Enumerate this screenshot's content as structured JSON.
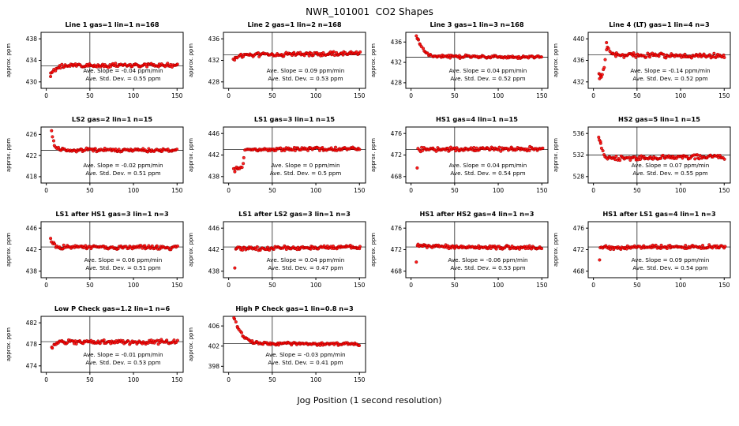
{
  "page": {
    "title": "NWR_101001  CO2 Shapes",
    "xlabel": "Jog Position (1 second resolution)",
    "ylabel": "approx. ppm"
  },
  "colors": {
    "point_fill": "#ff0000",
    "point_stroke": "#990000",
    "axis": "#000000",
    "background": "#ffffff"
  },
  "chart_data": {
    "type": "scatter",
    "title": "NWR_101001  CO2 Shapes",
    "xlabel": "Jog Position (1 second resolution)",
    "ylabel": "approx. ppm",
    "x_ticks": [
      0,
      50,
      100,
      150
    ],
    "x_range": [
      -6,
      157
    ],
    "vline_x": 50,
    "grid": "off",
    "panels": [
      {
        "title": "Line 1 gas=1 lin=1 n=168",
        "y_ticks": [
          430,
          434,
          438
        ],
        "y_range": [
          428.8,
          439.2
        ],
        "hline": 433,
        "slope": -0.04,
        "std_dev": 0.55,
        "slope_text": "Ave. Slope = -0.04 ppm/min",
        "std_text": "Ave. Std. Dev. = 0.55 ppm",
        "baseline_profile": [
          [
            5,
            431.7
          ],
          [
            11,
            432.3
          ],
          [
            18,
            432.9
          ],
          [
            28,
            433.0
          ],
          [
            150,
            433.1
          ]
        ],
        "outliers": [
          [
            5,
            431.0
          ]
        ],
        "noise": 0.28
      },
      {
        "title": "Line 2 gas=1 lin=2 n=168",
        "y_ticks": [
          428,
          432,
          436
        ],
        "y_range": [
          426.8,
          437.2
        ],
        "hline": 433,
        "slope": 0.09,
        "std_dev": 0.53,
        "slope_text": "Ave. Slope = 0.09 ppm/min",
        "std_text": "Ave. Std. Dev. = 0.53 ppm",
        "baseline_profile": [
          [
            5,
            432.1
          ],
          [
            12,
            432.7
          ],
          [
            20,
            433.0
          ],
          [
            150,
            433.3
          ]
        ],
        "outliers": [],
        "noise": 0.28
      },
      {
        "title": "Line 3 gas=1 lin=3 n=168",
        "y_ticks": [
          428,
          432,
          436
        ],
        "y_range": [
          426.9,
          437.9
        ],
        "hline": 433,
        "slope": 0.04,
        "std_dev": 0.52,
        "slope_text": "Ave. Slope = 0.04 ppm/min",
        "std_text": "Ave. Std. Dev. = 0.52 ppm",
        "baseline_profile": [
          [
            7,
            436.9
          ],
          [
            9,
            436.2
          ],
          [
            12,
            435.0
          ],
          [
            15,
            434.2
          ],
          [
            19,
            433.6
          ],
          [
            25,
            433.2
          ],
          [
            150,
            433.0
          ]
        ],
        "outliers": [
          [
            6,
            437.2
          ],
          [
            8,
            436.6
          ]
        ],
        "noise": 0.24
      },
      {
        "title": "Line 4 (LT) gas=1 lin=4 n=3",
        "y_ticks": [
          432,
          436,
          440
        ],
        "y_range": [
          430.8,
          441.2
        ],
        "hline": 437,
        "slope": -0.14,
        "std_dev": 0.52,
        "slope_text": "Ave. Slope = -0.14 ppm/min",
        "std_text": "Ave. Std. Dev. = 0.52 ppm",
        "baseline_profile": [
          [
            6,
            433.8
          ],
          [
            8,
            433.2
          ],
          [
            10,
            433.4
          ],
          [
            12,
            434.6
          ],
          [
            14,
            436.5
          ],
          [
            16,
            438.6
          ],
          [
            18,
            437.8
          ],
          [
            22,
            437.2
          ],
          [
            30,
            437.0
          ],
          [
            150,
            436.8
          ]
        ],
        "outliers": [
          [
            7,
            432.6
          ],
          [
            9,
            432.9
          ],
          [
            15,
            439.3
          ]
        ],
        "noise": 0.33
      },
      {
        "title": "LS2 gas=2 lin=1 n=15",
        "y_ticks": [
          418,
          422,
          426
        ],
        "y_range": [
          416.8,
          427.4
        ],
        "hline": 423,
        "slope": -0.02,
        "std_dev": 0.51,
        "slope_text": "Ave. Slope = -0.02 ppm/min",
        "std_text": "Ave. Std. Dev. = 0.51 ppm",
        "baseline_profile": [
          [
            7,
            425.6
          ],
          [
            9,
            424.2
          ],
          [
            12,
            423.4
          ],
          [
            16,
            423.1
          ],
          [
            150,
            423.0
          ]
        ],
        "outliers": [
          [
            6,
            426.7
          ]
        ],
        "noise": 0.28
      },
      {
        "title": "LS1 gas=3 lin=1 n=15",
        "y_ticks": [
          438,
          442,
          446
        ],
        "y_range": [
          436.8,
          447.2
        ],
        "hline": 443,
        "slope": 0,
        "std_dev": 0.5,
        "slope_text": "Ave. Slope = 0 ppm/min",
        "std_text": "Ave. Std. Dev. = 0.5 ppm",
        "baseline_profile": [
          [
            6,
            439.4
          ],
          [
            12,
            439.6
          ],
          [
            15,
            439.9
          ],
          [
            17,
            441.0
          ],
          [
            19,
            442.6
          ],
          [
            22,
            443.0
          ],
          [
            150,
            443.2
          ]
        ],
        "outliers": [
          [
            7,
            438.9
          ]
        ],
        "noise": 0.28
      },
      {
        "title": "HS1 gas=4 lin=1 n=15",
        "y_ticks": [
          468,
          472,
          476
        ],
        "y_range": [
          466.8,
          477.2
        ],
        "hline": 473,
        "slope": 0.04,
        "std_dev": 0.54,
        "slope_text": "Ave. Slope = 0.04 ppm/min",
        "std_text": "Ave. Std. Dev. = 0.54 ppm",
        "baseline_profile": [
          [
            8,
            473.0
          ],
          [
            150,
            473.2
          ]
        ],
        "outliers": [
          [
            7,
            469.6
          ]
        ],
        "noise": 0.3
      },
      {
        "title": "HS2 gas=5 lin=1 n=15",
        "y_ticks": [
          528,
          532,
          536
        ],
        "y_range": [
          526.8,
          537.2
        ],
        "hline": 532,
        "slope": 0.07,
        "std_dev": 0.55,
        "slope_text": "Ave. Slope = 0.07 ppm/min",
        "std_text": "Ave. Std. Dev. = 0.55 ppm",
        "baseline_profile": [
          [
            7,
            534.9
          ],
          [
            9,
            533.8
          ],
          [
            11,
            532.4
          ],
          [
            14,
            531.5
          ],
          [
            20,
            531.4
          ],
          [
            150,
            531.7
          ]
        ],
        "outliers": [
          [
            6,
            535.3
          ],
          [
            8,
            534.5
          ]
        ],
        "noise": 0.33
      },
      {
        "title": "LS1 after HS1 gas=3 lin=1 n=3",
        "y_ticks": [
          438,
          442,
          446
        ],
        "y_range": [
          436.8,
          447.2
        ],
        "hline": 442.5,
        "slope": 0.06,
        "std_dev": 0.51,
        "slope_text": "Ave. Slope = 0.06 ppm/min",
        "std_text": "Ave. Std. Dev. = 0.51 ppm",
        "baseline_profile": [
          [
            6,
            443.6
          ],
          [
            9,
            442.9
          ],
          [
            13,
            442.5
          ],
          [
            150,
            442.4
          ]
        ],
        "outliers": [
          [
            5,
            444.1
          ]
        ],
        "noise": 0.28
      },
      {
        "title": "LS1 after LS2 gas=3 lin=1 n=3",
        "y_ticks": [
          438,
          442,
          446
        ],
        "y_range": [
          436.8,
          447.2
        ],
        "hline": 442.5,
        "slope": 0.04,
        "std_dev": 0.47,
        "slope_text": "Ave. Slope = 0.04 ppm/min",
        "std_text": "Ave. Std. Dev. = 0.47 ppm",
        "baseline_profile": [
          [
            8,
            442.2
          ],
          [
            150,
            442.5
          ]
        ],
        "outliers": [
          [
            7,
            438.6
          ]
        ],
        "noise": 0.28
      },
      {
        "title": "HS1 after HS2 gas=4 lin=1 n=3",
        "y_ticks": [
          468,
          472,
          476
        ],
        "y_range": [
          466.8,
          477.2
        ],
        "hline": 472.5,
        "slope": -0.06,
        "std_dev": 0.53,
        "slope_text": "Ave. Slope = -0.06 ppm/min",
        "std_text": "Ave. Std. Dev. = 0.53 ppm",
        "baseline_profile": [
          [
            7,
            473.0
          ],
          [
            11,
            472.6
          ],
          [
            150,
            472.4
          ]
        ],
        "outliers": [
          [
            6,
            469.7
          ]
        ],
        "noise": 0.28
      },
      {
        "title": "HS1 after LS1 gas=4 lin=1 n=3",
        "y_ticks": [
          468,
          472,
          476
        ],
        "y_range": [
          466.8,
          477.2
        ],
        "hline": 472.5,
        "slope": 0.09,
        "std_dev": 0.54,
        "slope_text": "Ave. Slope = 0.09 ppm/min",
        "std_text": "Ave. Std. Dev. = 0.54 ppm",
        "baseline_profile": [
          [
            8,
            472.4
          ],
          [
            150,
            472.6
          ]
        ],
        "outliers": [
          [
            7,
            470.1
          ]
        ],
        "noise": 0.28
      },
      {
        "title": "Low P Check gas=1.2 lin=1 n=6",
        "y_ticks": [
          474,
          478,
          482
        ],
        "y_range": [
          472.8,
          483.2
        ],
        "hline": 478.5,
        "slope": -0.01,
        "std_dev": 0.53,
        "slope_text": "Ave. Slope = -0.01 ppm/min",
        "std_text": "Ave. Std. Dev. = 0.53 ppm",
        "baseline_profile": [
          [
            6,
            477.3
          ],
          [
            10,
            478.1
          ],
          [
            14,
            478.4
          ],
          [
            150,
            478.5
          ]
        ],
        "outliers": [],
        "noise": 0.33
      },
      {
        "title": "High P Check gas=1 lin=0.8 n=3",
        "y_ticks": [
          398,
          402,
          406
        ],
        "y_range": [
          396.8,
          407.9
        ],
        "hline": 402.5,
        "slope": -0.03,
        "std_dev": 0.41,
        "slope_text": "Ave. Slope = -0.03 ppm/min",
        "std_text": "Ave. Std. Dev. = 0.41 ppm",
        "baseline_profile": [
          [
            7,
            407.3
          ],
          [
            10,
            405.9
          ],
          [
            13,
            404.9
          ],
          [
            17,
            403.9
          ],
          [
            22,
            403.2
          ],
          [
            28,
            402.8
          ],
          [
            38,
            402.5
          ],
          [
            150,
            402.4
          ]
        ],
        "outliers": [
          [
            6,
            407.6
          ]
        ],
        "noise": 0.22
      }
    ]
  }
}
